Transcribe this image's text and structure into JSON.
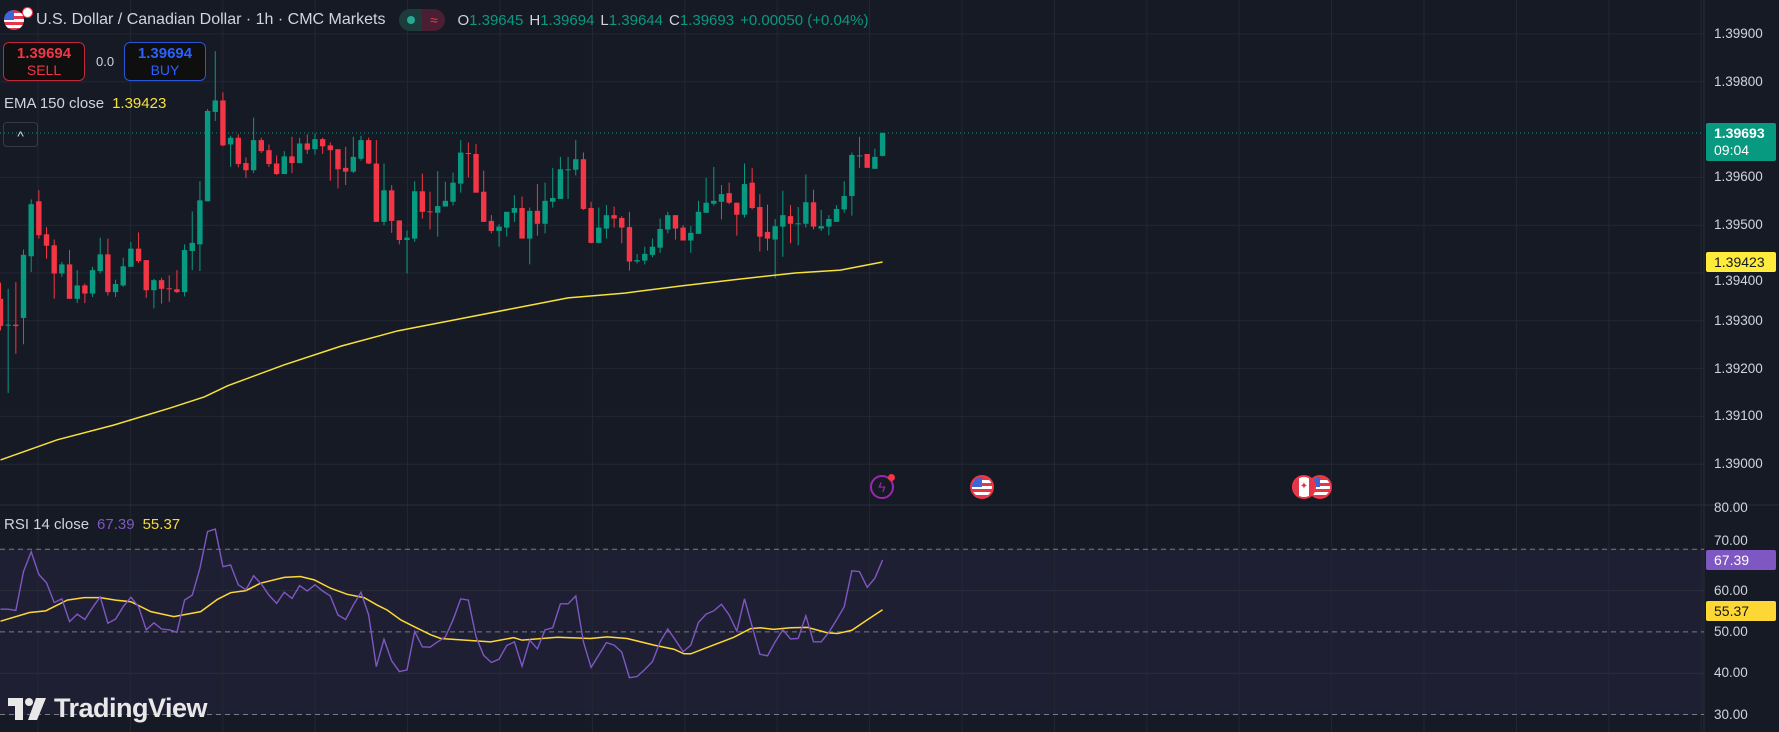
{
  "header": {
    "title": "U.S. Dollar / Canadian Dollar · 1h · CMC Markets",
    "ohlc": [
      {
        "key": "O",
        "value": "1.39645"
      },
      {
        "key": "H",
        "value": "1.39694"
      },
      {
        "key": "L",
        "value": "1.39644"
      },
      {
        "key": "C",
        "value": "1.39693"
      }
    ],
    "change": "+0.00050 (+0.04%)",
    "market_status_icon": "market-open-dot",
    "data_icon": "delayed-data-icon"
  },
  "trade": {
    "sell_price": "1.39694",
    "sell_label": "SELL",
    "spread": "0.0",
    "buy_price": "1.39694",
    "buy_label": "BUY"
  },
  "ema_legend": {
    "label": "EMA 150 close",
    "value": "1.39423"
  },
  "collapse_icon": "^",
  "rsi_legend": {
    "label": "RSI 14 close",
    "value": "67.39",
    "ma_value": "55.37"
  },
  "logo_text": "TradingView",
  "price_axis": {
    "ticks": [
      "1.39900",
      "1.39800",
      "1.39600",
      "1.39500",
      "1.39400",
      "1.39300",
      "1.39200",
      "1.39100",
      "1.39000"
    ],
    "current_price": "1.39693",
    "countdown": "09:04",
    "ema_tag": "1.39423"
  },
  "rsi_axis": {
    "ticks": [
      "80.00",
      "70.00",
      "60.00",
      "50.00",
      "40.00",
      "30.00"
    ],
    "rsi_tag": "67.39",
    "ma_tag": "55.37"
  },
  "events": [
    {
      "name": "lightning-event-icon"
    },
    {
      "name": "us-flag-event-icon"
    },
    {
      "name": "canada-flag-event-icon"
    },
    {
      "name": "us-flag-event-icon"
    }
  ],
  "colors": {
    "up": "#089981",
    "down": "#f23645",
    "ema": "#f7e13a",
    "rsi": "#7e57c2",
    "rsi_ma": "#fdd835",
    "background": "#161a25"
  },
  "chart_data": [
    {
      "type": "candlestick",
      "title": "U.S. Dollar / Canadian Dollar · 1h · CMC Markets",
      "ylim": [
        1.3885,
        1.3997
      ],
      "candles_ohlc": [
        [
          1.39346,
          1.3938,
          1.3928,
          1.39289
        ],
        [
          1.3929,
          1.39367,
          1.39149,
          1.39292
        ],
        [
          1.39292,
          1.39381,
          1.39231,
          1.39289
        ],
        [
          1.39306,
          1.39449,
          1.39251,
          1.39438
        ],
        [
          1.39435,
          1.39554,
          1.39402,
          1.39544
        ],
        [
          1.3955,
          1.39573,
          1.39472,
          1.39479
        ],
        [
          1.39481,
          1.39496,
          1.3943,
          1.39457
        ],
        [
          1.39458,
          1.3947,
          1.39346,
          1.39399
        ],
        [
          1.39399,
          1.39423,
          1.39392,
          1.39418
        ],
        [
          1.39418,
          1.39448,
          1.39346,
          1.39346
        ],
        [
          1.39346,
          1.39406,
          1.39337,
          1.39374
        ],
        [
          1.39374,
          1.39378,
          1.39337,
          1.39357
        ],
        [
          1.39357,
          1.39413,
          1.3935,
          1.39406
        ],
        [
          1.39404,
          1.39474,
          1.39399,
          1.39439
        ],
        [
          1.39439,
          1.39472,
          1.39353,
          1.3936
        ],
        [
          1.3936,
          1.39386,
          1.3935,
          1.39377
        ],
        [
          1.39374,
          1.39432,
          1.39371,
          1.39414
        ],
        [
          1.39413,
          1.39465,
          1.39413,
          1.39451
        ],
        [
          1.39451,
          1.39485,
          1.39421,
          1.39425
        ],
        [
          1.39427,
          1.39427,
          1.39348,
          1.39364
        ],
        [
          1.39364,
          1.39388,
          1.39326,
          1.39385
        ],
        [
          1.39385,
          1.3939,
          1.39336,
          1.39367
        ],
        [
          1.39368,
          1.39395,
          1.3934,
          1.39367
        ],
        [
          1.39366,
          1.39406,
          1.39358,
          1.3936
        ],
        [
          1.3936,
          1.3946,
          1.39351,
          1.39448
        ],
        [
          1.39446,
          1.39529,
          1.39406,
          1.39463
        ],
        [
          1.3946,
          1.39592,
          1.39404,
          1.39552
        ],
        [
          1.3955,
          1.39743,
          1.3955,
          1.39739
        ],
        [
          1.39737,
          1.39864,
          1.39718,
          1.39761
        ],
        [
          1.39761,
          1.39778,
          1.39665,
          1.39667
        ],
        [
          1.39669,
          1.39687,
          1.39622,
          1.39683
        ],
        [
          1.39683,
          1.3969,
          1.39621,
          1.39628
        ],
        [
          1.3963,
          1.39642,
          1.39599,
          1.39615
        ],
        [
          1.39615,
          1.39725,
          1.39609,
          1.39678
        ],
        [
          1.39678,
          1.39683,
          1.39651,
          1.39655
        ],
        [
          1.39657,
          1.39669,
          1.39622,
          1.39628
        ],
        [
          1.39629,
          1.39646,
          1.39605,
          1.39607
        ],
        [
          1.39607,
          1.39655,
          1.39607,
          1.39644
        ],
        [
          1.39644,
          1.39685,
          1.39609,
          1.3963
        ],
        [
          1.3963,
          1.39683,
          1.3963,
          1.39671
        ],
        [
          1.39671,
          1.3969,
          1.39649,
          1.39658
        ],
        [
          1.39659,
          1.39692,
          1.39648,
          1.3968
        ],
        [
          1.3968,
          1.39683,
          1.39649,
          1.39665
        ],
        [
          1.39667,
          1.39673,
          1.39593,
          1.39657
        ],
        [
          1.39659,
          1.39659,
          1.39577,
          1.39617
        ],
        [
          1.3962,
          1.39664,
          1.39584,
          1.39612
        ],
        [
          1.39612,
          1.39685,
          1.39609,
          1.39643
        ],
        [
          1.39639,
          1.39687,
          1.39635,
          1.39678
        ],
        [
          1.39678,
          1.39683,
          1.39628,
          1.39629
        ],
        [
          1.39629,
          1.39678,
          1.39507,
          1.39507
        ],
        [
          1.39507,
          1.39629,
          1.395,
          1.39573
        ],
        [
          1.39573,
          1.39584,
          1.39484,
          1.39509
        ],
        [
          1.3951,
          1.3951,
          1.3946,
          1.39469
        ],
        [
          1.39469,
          1.39489,
          1.39399,
          1.39474
        ],
        [
          1.39472,
          1.39592,
          1.39465,
          1.39571
        ],
        [
          1.39571,
          1.39608,
          1.39514,
          1.39528
        ],
        [
          1.39529,
          1.3957,
          1.39491,
          1.39528
        ],
        [
          1.39526,
          1.39613,
          1.39476,
          1.3954
        ],
        [
          1.39539,
          1.39591,
          1.39539,
          1.39551
        ],
        [
          1.39549,
          1.3961,
          1.39541,
          1.39589
        ],
        [
          1.39587,
          1.39678,
          1.39568,
          1.39652
        ],
        [
          1.39651,
          1.39673,
          1.396,
          1.3965
        ],
        [
          1.39649,
          1.3967,
          1.39568,
          1.39568
        ],
        [
          1.3957,
          1.39614,
          1.39507,
          1.39507
        ],
        [
          1.39509,
          1.39521,
          1.39483,
          1.39488
        ],
        [
          1.39488,
          1.39502,
          1.39455,
          1.39497
        ],
        [
          1.39495,
          1.39528,
          1.39476,
          1.39528
        ],
        [
          1.39526,
          1.39563,
          1.39507,
          1.39536
        ],
        [
          1.39536,
          1.3956,
          1.39472,
          1.39472
        ],
        [
          1.39472,
          1.39537,
          1.39418,
          1.3953
        ],
        [
          1.3953,
          1.39586,
          1.39478,
          1.39503
        ],
        [
          1.39503,
          1.39589,
          1.39483,
          1.39551
        ],
        [
          1.39549,
          1.3962,
          1.39537,
          1.39557
        ],
        [
          1.39555,
          1.39643,
          1.39555,
          1.39617
        ],
        [
          1.39616,
          1.39643,
          1.39555,
          1.39617
        ],
        [
          1.39616,
          1.39678,
          1.39604,
          1.39638
        ],
        [
          1.39638,
          1.39652,
          1.39532,
          1.39534
        ],
        [
          1.39536,
          1.39549,
          1.39462,
          1.39463
        ],
        [
          1.39463,
          1.39537,
          1.39462,
          1.39495
        ],
        [
          1.39493,
          1.39542,
          1.39472,
          1.39521
        ],
        [
          1.39521,
          1.39539,
          1.39495,
          1.39514
        ],
        [
          1.39515,
          1.39519,
          1.39462,
          1.39495
        ],
        [
          1.39496,
          1.39528,
          1.39405,
          1.39424
        ],
        [
          1.39424,
          1.3944,
          1.3942,
          1.39427
        ],
        [
          1.39426,
          1.39455,
          1.39418,
          1.3944
        ],
        [
          1.39438,
          1.39472,
          1.39433,
          1.39455
        ],
        [
          1.39453,
          1.39514,
          1.39442,
          1.39492
        ],
        [
          1.39491,
          1.39528,
          1.39483,
          1.39521
        ],
        [
          1.39521,
          1.39521,
          1.3947,
          1.39493
        ],
        [
          1.39495,
          1.395,
          1.39468,
          1.39468
        ],
        [
          1.39468,
          1.39498,
          1.39442,
          1.39484
        ],
        [
          1.39482,
          1.39551,
          1.39482,
          1.39528
        ],
        [
          1.39526,
          1.39599,
          1.39526,
          1.39547
        ],
        [
          1.39545,
          1.39622,
          1.39541,
          1.39551
        ],
        [
          1.39549,
          1.39584,
          1.39512,
          1.39565
        ],
        [
          1.39567,
          1.39589,
          1.39544,
          1.39547
        ],
        [
          1.39547,
          1.39547,
          1.39478,
          1.39522
        ],
        [
          1.39522,
          1.39629,
          1.39516,
          1.39586
        ],
        [
          1.39589,
          1.3962,
          1.39533,
          1.39536
        ],
        [
          1.39538,
          1.39565,
          1.39445,
          1.39476
        ],
        [
          1.39486,
          1.39543,
          1.39447,
          1.39472
        ],
        [
          1.3947,
          1.39513,
          1.39389,
          1.39498
        ],
        [
          1.39497,
          1.39572,
          1.39434,
          1.39521
        ],
        [
          1.39519,
          1.39542,
          1.39462,
          1.39503
        ],
        [
          1.39503,
          1.39538,
          1.39458,
          1.39504
        ],
        [
          1.39503,
          1.39606,
          1.39495,
          1.39548
        ],
        [
          1.39548,
          1.39574,
          1.39491,
          1.39497
        ],
        [
          1.39493,
          1.39532,
          1.39488,
          1.39498
        ],
        [
          1.39497,
          1.39521,
          1.39479,
          1.39513
        ],
        [
          1.39507,
          1.39542,
          1.39507,
          1.39534
        ],
        [
          1.39533,
          1.39592,
          1.39526,
          1.39561
        ],
        [
          1.39561,
          1.39652,
          1.3952,
          1.39647
        ],
        [
          1.39645,
          1.39685,
          1.3962,
          1.39646
        ],
        [
          1.39649,
          1.39649,
          1.3962,
          1.3962
        ],
        [
          1.39618,
          1.3966,
          1.39618,
          1.39643
        ],
        [
          1.39645,
          1.39694,
          1.39644,
          1.39693
        ]
      ],
      "ema150_points": [
        [
          1,
          1.39009
        ],
        [
          8.4,
          1.39051
        ],
        [
          15.8,
          1.39082
        ],
        [
          23.2,
          1.39118
        ],
        [
          27.6,
          1.39141
        ],
        [
          30.6,
          1.39164
        ],
        [
          38,
          1.39208
        ],
        [
          45.4,
          1.39247
        ],
        [
          52.8,
          1.39279
        ],
        [
          60.2,
          1.39302
        ],
        [
          67.6,
          1.39325
        ],
        [
          75,
          1.39348
        ],
        [
          82.4,
          1.39358
        ],
        [
          89.8,
          1.39373
        ],
        [
          97.2,
          1.39387
        ],
        [
          104.6,
          1.394
        ],
        [
          110.5,
          1.39406
        ],
        [
          116,
          1.39423
        ]
      ]
    },
    {
      "type": "line",
      "title": "RSI 14 close",
      "ylim": [
        30,
        80
      ],
      "levels": [
        70,
        50,
        30
      ],
      "rsi": [
        55.5,
        55.5,
        55.2,
        64.6,
        69.4,
        63.9,
        61.9,
        57.1,
        58.0,
        52.5,
        54.3,
        53.0,
        55.9,
        58.5,
        52.1,
        53.1,
        56.1,
        58.4,
        56.1,
        50.5,
        52.2,
        50.7,
        50.5,
        49.9,
        57.7,
        58.9,
        65.4,
        74.3,
        74.9,
        65.8,
        66.2,
        61.4,
        60.2,
        63.6,
        61.6,
        58.9,
        56.9,
        59.6,
        58.1,
        61.2,
        59.9,
        61.4,
        59.9,
        58.7,
        54.1,
        53.0,
        56.5,
        59.6,
        54.1,
        41.6,
        48.2,
        43.0,
        40.4,
        40.8,
        50.1,
        46.4,
        46.3,
        47.6,
        48.8,
        52.9,
        58.0,
        57.7,
        48.8,
        44.3,
        42.6,
        43.4,
        46.7,
        47.6,
        41.7,
        48.0,
        45.9,
        50.5,
        51.0,
        56.8,
        56.8,
        58.7,
        47.6,
        41.4,
        44.4,
        47.4,
        46.8,
        45.1,
        38.9,
        39.2,
        40.9,
        42.8,
        47.6,
        50.7,
        48.0,
        45.2,
        46.8,
        52.3,
        54.3,
        55.1,
        56.7,
        54.1,
        50.2,
        58.0,
        51.3,
        44.6,
        44.2,
        47.6,
        50.5,
        48.3,
        48.4,
        53.9,
        47.6,
        47.6,
        49.9,
        52.9,
        56.1,
        64.8,
        64.6,
        60.8,
        63.0,
        67.39
      ],
      "rsi_ma_points": [
        [
          1,
          52.6
        ],
        [
          4.8,
          54.7
        ],
        [
          6.9,
          55.1
        ],
        [
          9.7,
          57.7
        ],
        [
          11.9,
          58.3
        ],
        [
          14,
          58.3
        ],
        [
          16,
          57.7
        ],
        [
          18,
          57.3
        ],
        [
          20.6,
          54.9
        ],
        [
          23.6,
          53.7
        ],
        [
          27.1,
          54.9
        ],
        [
          29.3,
          57.9
        ],
        [
          31,
          59.5
        ],
        [
          33,
          60.0
        ],
        [
          34.9,
          61.8
        ],
        [
          38,
          63.2
        ],
        [
          40.1,
          63.4
        ],
        [
          41.9,
          62.6
        ],
        [
          44,
          60.6
        ],
        [
          46.2,
          59.1
        ],
        [
          48.4,
          58.3
        ],
        [
          50.1,
          56.5
        ],
        [
          51.4,
          55.3
        ],
        [
          53.2,
          52.9
        ],
        [
          54.9,
          51.3
        ],
        [
          57.1,
          49.3
        ],
        [
          58.4,
          48.4
        ],
        [
          64.9,
          47.6
        ],
        [
          67.9,
          48.6
        ],
        [
          69,
          48.0
        ],
        [
          73.6,
          48.7
        ],
        [
          77.9,
          48.4
        ],
        [
          80.1,
          48.8
        ],
        [
          82.7,
          48.4
        ],
        [
          86.2,
          46.8
        ],
        [
          88.8,
          45.8
        ],
        [
          90.1,
          44.7
        ],
        [
          91,
          44.7
        ],
        [
          93.1,
          46.2
        ],
        [
          96.6,
          48.7
        ],
        [
          98.8,
          50.8
        ],
        [
          100.1,
          51.0
        ],
        [
          101.8,
          50.6
        ],
        [
          104,
          51.0
        ],
        [
          106.2,
          51.1
        ],
        [
          108.8,
          49.8
        ],
        [
          110.1,
          49.6
        ],
        [
          112,
          50.4
        ],
        [
          114,
          52.9
        ],
        [
          116,
          55.37
        ]
      ]
    }
  ]
}
